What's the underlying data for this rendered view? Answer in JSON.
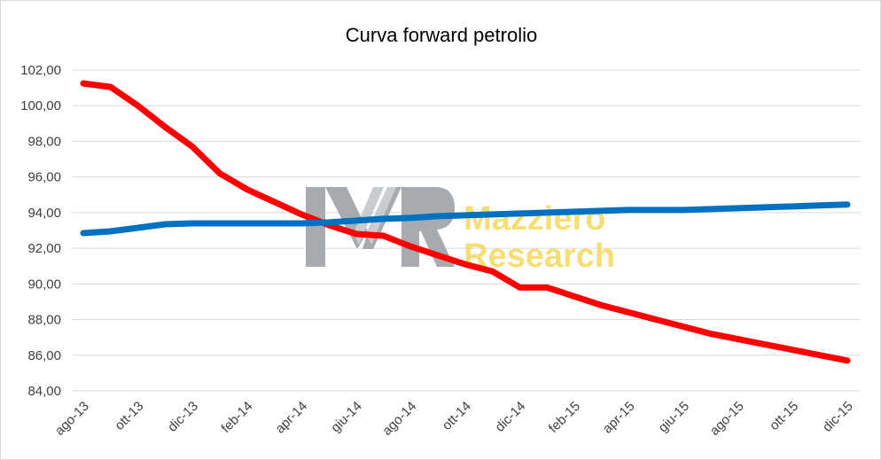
{
  "chart_data": {
    "type": "line",
    "title": "Curva forward petrolio",
    "xlabel": "",
    "ylabel": "",
    "ylim": [
      84,
      102
    ],
    "yticks": [
      "84,00",
      "86,00",
      "88,00",
      "90,00",
      "92,00",
      "94,00",
      "96,00",
      "98,00",
      "100,00",
      "102,00"
    ],
    "ytick_values": [
      84,
      86,
      88,
      90,
      92,
      94,
      96,
      98,
      100,
      102
    ],
    "x": [
      "ago-13",
      "set-13",
      "ott-13",
      "nov-13",
      "dic-13",
      "gen-14",
      "feb-14",
      "mar-14",
      "apr-14",
      "mag-14",
      "giu-14",
      "lug-14",
      "ago-14",
      "set-14",
      "ott-14",
      "nov-14",
      "dic-14",
      "gen-15",
      "feb-15",
      "mar-15",
      "apr-15",
      "mag-15",
      "giu-15",
      "lug-15",
      "ago-15",
      "set-15",
      "ott-15",
      "nov-15",
      "dic-15"
    ],
    "xtick_labels": [
      "ago-13",
      "ott-13",
      "dic-13",
      "feb-14",
      "apr-14",
      "giu-14",
      "ago-14",
      "ott-14",
      "dic-14",
      "feb-15",
      "apr-15",
      "giu-15",
      "ago-15",
      "ott-15",
      "dic-15"
    ],
    "grid": true,
    "series": [
      {
        "color": "#ff0000",
        "values": [
          101.25,
          101.05,
          100.0,
          98.8,
          97.7,
          96.2,
          95.3,
          94.6,
          93.9,
          93.3,
          92.8,
          92.7,
          92.1,
          91.6,
          91.1,
          90.7,
          89.8,
          89.8,
          89.3,
          88.8,
          88.4,
          88.0,
          87.6,
          87.2,
          86.9,
          86.6,
          86.3,
          86.0,
          85.7
        ]
      },
      {
        "color": "#0070c0",
        "values": [
          92.85,
          92.95,
          93.15,
          93.35,
          93.4,
          93.4,
          93.4,
          93.4,
          93.4,
          93.45,
          93.55,
          93.65,
          93.7,
          93.8,
          93.85,
          93.9,
          93.95,
          94.0,
          94.05,
          94.1,
          94.15,
          94.15,
          94.15,
          94.2,
          94.25,
          94.3,
          94.35,
          94.4,
          94.45
        ]
      }
    ]
  },
  "watermark": {
    "monogram": "MR",
    "line1": "Mazziero",
    "line2": "Research",
    "monogram_color": "#9ea3a8",
    "text_color": "#f2d64b"
  }
}
